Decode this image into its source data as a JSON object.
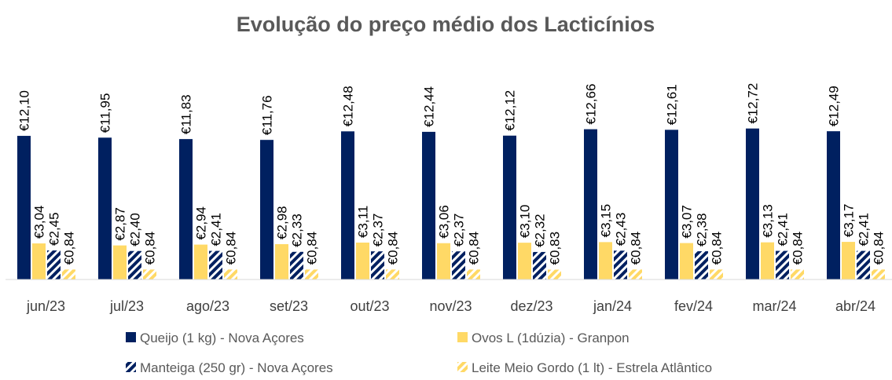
{
  "chart_data": {
    "type": "bar",
    "title": "Evolução do preço médio dos Lacticínios",
    "categories": [
      "jun/23",
      "jul/23",
      "ago/23",
      "set/23",
      "out/23",
      "nov/23",
      "dez/23",
      "jan/24",
      "fev/24",
      "mar/24",
      "abr/24"
    ],
    "series": [
      {
        "name": "Queijo (1 kg) - Nova Açores",
        "color": "#002060",
        "hatch": false,
        "values": [
          12.1,
          11.95,
          11.83,
          11.76,
          12.48,
          12.44,
          12.12,
          12.66,
          12.61,
          12.72,
          12.49
        ],
        "value_labels": [
          "€12,10",
          "€11,95",
          "€11,83",
          "€11,76",
          "€12,48",
          "€12,44",
          "€12,12",
          "€12,66",
          "€12,61",
          "€12,72",
          "€12,49"
        ]
      },
      {
        "name": "Ovos L (1dúzia)  - Granpon",
        "color": "#ffd966",
        "hatch": false,
        "values": [
          3.04,
          2.87,
          2.94,
          2.98,
          3.11,
          3.06,
          3.1,
          3.15,
          3.07,
          3.13,
          3.17
        ],
        "value_labels": [
          "€3,04",
          "€2,87",
          "€2,94",
          "€2,98",
          "€3,11",
          "€3,06",
          "€3,10",
          "€3,15",
          "€3,07",
          "€3,13",
          "€3,17"
        ]
      },
      {
        "name": "Manteiga (250 gr) - Nova Açores",
        "color": "#002060",
        "hatch": true,
        "values": [
          2.45,
          2.4,
          2.41,
          2.33,
          2.37,
          2.37,
          2.32,
          2.43,
          2.38,
          2.41,
          2.41
        ],
        "value_labels": [
          "€2,45",
          "€2,40",
          "€2,41",
          "€2,33",
          "€2,37",
          "€2,37",
          "€2,32",
          "€2,43",
          "€2,38",
          "€2,41",
          "€2,41"
        ]
      },
      {
        "name": "Leite Meio Gordo (1 lt) - Estrela Atlântico",
        "color": "#ffd966",
        "hatch": true,
        "values": [
          0.84,
          0.84,
          0.84,
          0.84,
          0.84,
          0.84,
          0.83,
          0.84,
          0.84,
          0.84,
          0.84
        ],
        "value_labels": [
          "€0,84",
          "€0,84",
          "€0,84",
          "€0,84",
          "€0,84",
          "€0,84",
          "€0,83",
          "€0,84",
          "€0,84",
          "€0,84",
          "€0,84"
        ]
      }
    ]
  }
}
